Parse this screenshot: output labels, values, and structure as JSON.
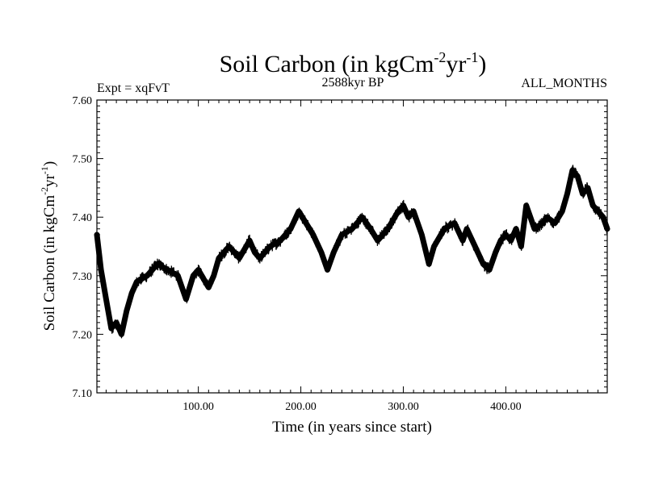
{
  "chart_data": {
    "type": "line",
    "title_main": "Soil Carbon (in kgCm",
    "title_exp1": "-2",
    "title_mid": "yr",
    "title_exp2": "-1",
    "title_end": ")",
    "expt_label": "Expt = xqFvT",
    "period_label": "2588kyr BP",
    "months_label": "ALL_MONTHS",
    "xlabel": "Time (in years since start)",
    "ylabel_main": "Soil Carbon (in kgCm",
    "ylabel_exp1": "-2",
    "ylabel_mid": "yr",
    "ylabel_exp2": "-1",
    "ylabel_end": ")",
    "xlim": [
      1,
      499
    ],
    "ylim": [
      7.1,
      7.6
    ],
    "x_ticks": [
      100,
      200,
      300,
      400
    ],
    "x_tick_labels": [
      "100.00",
      "200.00",
      "300.00",
      "400.00"
    ],
    "y_ticks": [
      7.1,
      7.2,
      7.3,
      7.4,
      7.5,
      7.6
    ],
    "y_tick_labels": [
      "7.10",
      "7.20",
      "7.30",
      "7.40",
      "7.50",
      "7.60"
    ],
    "series": [
      {
        "name": "Soil Carbon",
        "color": "#000000",
        "x": [
          1,
          5,
          10,
          15,
          20,
          25,
          30,
          35,
          40,
          50,
          60,
          70,
          80,
          88,
          95,
          100,
          110,
          115,
          120,
          130,
          140,
          150,
          155,
          160,
          170,
          180,
          190,
          198,
          205,
          212,
          220,
          226,
          232,
          240,
          250,
          260,
          268,
          275,
          285,
          295,
          300,
          305,
          310,
          318,
          325,
          330,
          340,
          350,
          358,
          362,
          370,
          378,
          384,
          390,
          395,
          400,
          405,
          410,
          415,
          420,
          428,
          436,
          440,
          448,
          455,
          460,
          465,
          470,
          475,
          480,
          485,
          490,
          495,
          499
        ],
        "y": [
          7.37,
          7.31,
          7.26,
          7.21,
          7.22,
          7.2,
          7.24,
          7.27,
          7.29,
          7.3,
          7.32,
          7.31,
          7.3,
          7.26,
          7.3,
          7.31,
          7.28,
          7.3,
          7.33,
          7.35,
          7.33,
          7.36,
          7.34,
          7.33,
          7.35,
          7.36,
          7.38,
          7.41,
          7.39,
          7.37,
          7.34,
          7.31,
          7.34,
          7.37,
          7.38,
          7.4,
          7.38,
          7.36,
          7.38,
          7.41,
          7.42,
          7.4,
          7.41,
          7.37,
          7.32,
          7.35,
          7.38,
          7.39,
          7.36,
          7.38,
          7.35,
          7.32,
          7.31,
          7.34,
          7.36,
          7.37,
          7.36,
          7.38,
          7.35,
          7.42,
          7.38,
          7.39,
          7.4,
          7.39,
          7.41,
          7.44,
          7.48,
          7.47,
          7.44,
          7.45,
          7.42,
          7.41,
          7.4,
          7.38
        ]
      }
    ]
  }
}
